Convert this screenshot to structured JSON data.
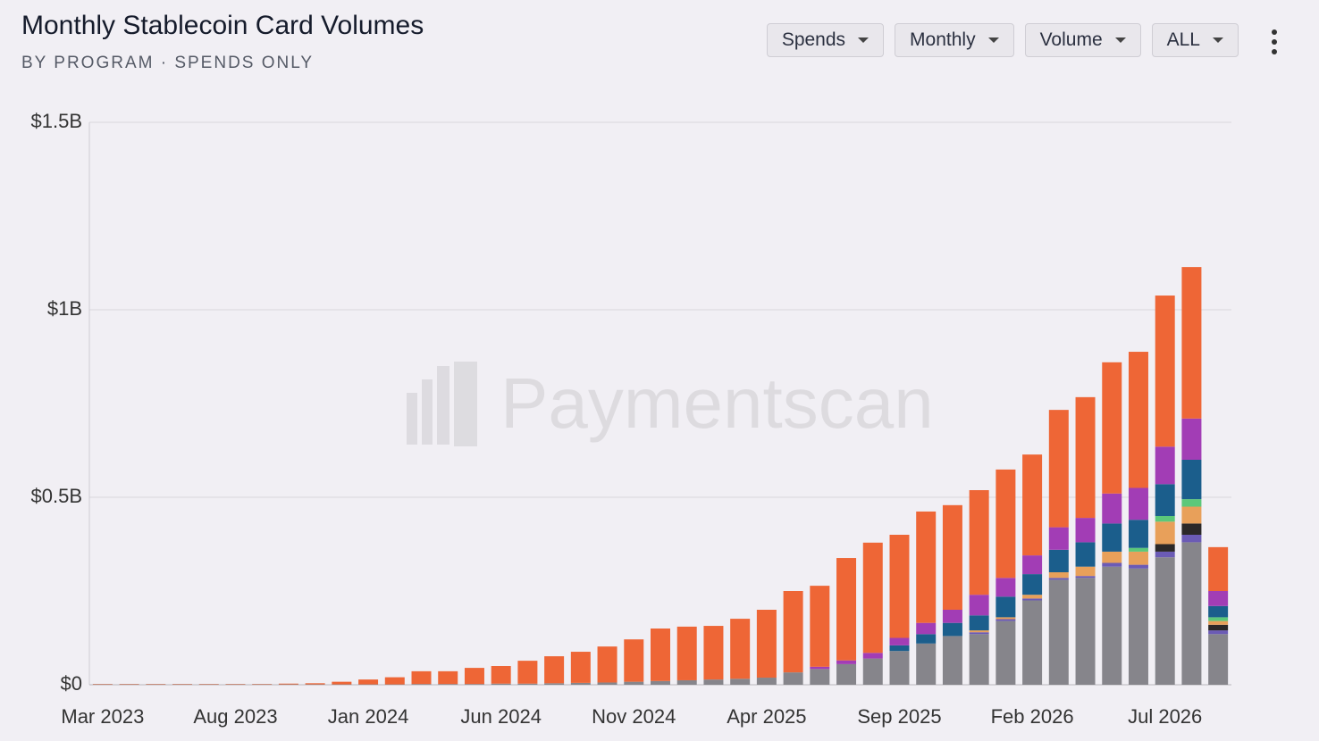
{
  "chart_data": {
    "type": "stacked_bar",
    "title": "Monthly Stablecoin Card Volumes",
    "subtitle": "BY PROGRAM · SPENDS ONLY",
    "controls": [
      "Spends",
      "Monthly",
      "Volume",
      "ALL"
    ],
    "watermark": "Paymentscan",
    "categories": [
      "Mar 2023",
      null,
      null,
      null,
      null,
      "Aug 2023",
      null,
      null,
      null,
      null,
      "Jan 2024",
      null,
      null,
      null,
      null,
      "Jun 2024",
      null,
      null,
      null,
      null,
      "Nov 2024",
      null,
      null,
      null,
      null,
      "Apr 2025",
      null,
      null,
      null,
      null,
      "Sep 2025",
      null,
      null,
      null,
      null,
      "Feb 2026",
      null,
      null,
      null,
      null,
      "Jul 2026",
      null,
      null
    ],
    "ylim": [
      0,
      1.5
    ],
    "yticks": [
      {
        "value": 0,
        "label": "$0"
      },
      {
        "value": 0.5,
        "label": "$0.5B"
      },
      {
        "value": 1,
        "label": "$1B"
      },
      {
        "value": 1.5,
        "label": "$1.5B"
      }
    ],
    "grid": true,
    "series": [
      {
        "color": "#86858b",
        "values": [
          0.001,
          0.001,
          0.001,
          0.001,
          0.001,
          0.001,
          0.001,
          0.001,
          0.001,
          0.001,
          0.001,
          0.001,
          0.002,
          0.002,
          0.002,
          0.003,
          0.003,
          0.004,
          0.005,
          0.006,
          0.008,
          0.01,
          0.012,
          0.014,
          0.016,
          0.019,
          0.033,
          0.042,
          0.055,
          0.07,
          0.09,
          0.11,
          0.13,
          0.135,
          0.17,
          0.225,
          0.28,
          0.285,
          0.315,
          0.31,
          0.34,
          0.38,
          0.135
        ]
      },
      {
        "color": "#6b5bb5",
        "values": [
          0,
          0,
          0,
          0,
          0,
          0,
          0,
          0,
          0,
          0,
          0,
          0,
          0,
          0,
          0,
          0,
          0,
          0,
          0,
          0,
          0,
          0,
          0,
          0,
          0,
          0,
          0,
          0,
          0,
          0,
          0,
          0,
          0,
          0.005,
          0.005,
          0.005,
          0.005,
          0.005,
          0.01,
          0.01,
          0.015,
          0.02,
          0.01
        ]
      },
      {
        "color": "#2b2828",
        "values": [
          0,
          0,
          0,
          0,
          0,
          0,
          0,
          0,
          0,
          0,
          0,
          0,
          0,
          0,
          0,
          0,
          0,
          0,
          0,
          0,
          0,
          0,
          0,
          0,
          0,
          0,
          0,
          0,
          0,
          0,
          0,
          0,
          0,
          0,
          0,
          0,
          0,
          0,
          0,
          0,
          0.02,
          0.03,
          0.015
        ]
      },
      {
        "color": "#e8a05a",
        "values": [
          0,
          0,
          0,
          0,
          0,
          0,
          0,
          0,
          0,
          0,
          0,
          0,
          0,
          0,
          0,
          0,
          0,
          0,
          0,
          0,
          0,
          0,
          0,
          0,
          0,
          0,
          0,
          0,
          0,
          0,
          0,
          0,
          0,
          0.005,
          0.005,
          0.01,
          0.015,
          0.025,
          0.03,
          0.035,
          0.06,
          0.045,
          0.01
        ]
      },
      {
        "color": "#5cc87a",
        "values": [
          0,
          0,
          0,
          0,
          0,
          0,
          0,
          0,
          0,
          0,
          0,
          0,
          0,
          0,
          0,
          0,
          0,
          0,
          0,
          0,
          0,
          0,
          0,
          0,
          0,
          0,
          0,
          0,
          0,
          0,
          0,
          0,
          0,
          0,
          0,
          0,
          0,
          0,
          0,
          0.01,
          0.015,
          0.02,
          0.01
        ]
      },
      {
        "color": "#1b5e8c",
        "values": [
          0,
          0,
          0,
          0,
          0,
          0,
          0,
          0,
          0,
          0,
          0,
          0,
          0,
          0,
          0,
          0,
          0,
          0,
          0,
          0,
          0,
          0,
          0,
          0,
          0,
          0,
          0,
          0,
          0,
          0,
          0.015,
          0.025,
          0.035,
          0.04,
          0.055,
          0.055,
          0.06,
          0.065,
          0.075,
          0.075,
          0.085,
          0.105,
          0.03
        ]
      },
      {
        "color": "#a23db5",
        "values": [
          0,
          0,
          0,
          0,
          0,
          0,
          0,
          0,
          0,
          0,
          0,
          0,
          0,
          0,
          0,
          0,
          0,
          0,
          0,
          0,
          0,
          0,
          0,
          0,
          0,
          0,
          0,
          0.006,
          0.01,
          0.015,
          0.02,
          0.03,
          0.035,
          0.055,
          0.05,
          0.05,
          0.06,
          0.065,
          0.08,
          0.085,
          0.1,
          0.11,
          0.04
        ]
      },
      {
        "color": "#ee6636",
        "values": [
          0.001,
          0.001,
          0.001,
          0.001,
          0.001,
          0.001,
          0.001,
          0.002,
          0.003,
          0.007,
          0.013,
          0.019,
          0.034,
          0.034,
          0.043,
          0.047,
          0.061,
          0.072,
          0.083,
          0.096,
          0.113,
          0.14,
          0.143,
          0.143,
          0.16,
          0.181,
          0.217,
          0.216,
          0.273,
          0.294,
          0.275,
          0.297,
          0.279,
          0.279,
          0.289,
          0.269,
          0.313,
          0.322,
          0.35,
          0.363,
          0.403,
          0.404,
          0.117
        ]
      }
    ]
  }
}
